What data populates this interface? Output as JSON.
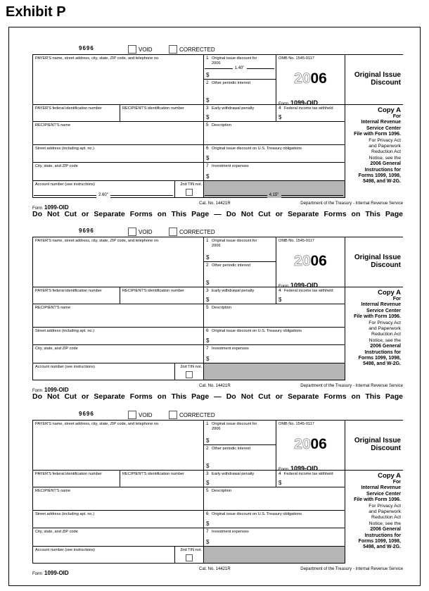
{
  "title": "Exhibit P",
  "separators": [
    "Do Not Cut or Separate Forms on This Page — Do Not Cut or Separate Forms on This Page",
    "Do Not Cut or Separate Forms on This Page — Do Not Cut or Separate Forms on This Page"
  ],
  "forms": [
    {
      "form_code": "9696",
      "void": "VOID",
      "corrected": "CORRECTED",
      "payer_name": {
        "label": "PAYER'S name, street address, city, state, ZIP code, and telephone no."
      },
      "box1": {
        "num": "1",
        "label": "Original issue discount for 2006",
        "currency": "$"
      },
      "box2": {
        "num": "2",
        "label": "Other periodic interest",
        "currency": "$"
      },
      "omb": "OMB No. 1545-0117",
      "year_prefix": "20",
      "year_suffix": "06",
      "form_word": "Form",
      "form_id": "1099-OID",
      "heading": "Original Issue Discount",
      "payer_id": {
        "label": "PAYER'S federal identification number"
      },
      "recipient_id": {
        "label": "RECIPIENT'S identification number"
      },
      "box3": {
        "num": "3",
        "label": "Early withdrawal penalty",
        "currency": "$"
      },
      "box4": {
        "num": "4",
        "label": "Federal income tax withheld",
        "currency": "$"
      },
      "recipient_name": {
        "label": "RECIPIENT'S name"
      },
      "box5": {
        "num": "5",
        "label": "Description"
      },
      "street": {
        "label": "Street address (including apt. no.)"
      },
      "box6": {
        "num": "6",
        "label": "Original issue discount on U.S. Treasury obligations",
        "currency": "$"
      },
      "city": {
        "label": "City, state, and ZIP code"
      },
      "box7": {
        "num": "7",
        "label": "Investment expenses",
        "currency": "$"
      },
      "account": {
        "label": "Account number (see instructions)"
      },
      "tin": {
        "label": "2nd TIN not."
      },
      "copy": "Copy A",
      "copy_lines": [
        "For",
        "Internal Revenue",
        "Service Center",
        "File with Form 1096.",
        "For Privacy Act",
        "and Paperwork",
        "Reduction Act",
        "Notice, see the",
        "2006 General",
        "Instructions for",
        "Forms 1099, 1098,",
        "5498, and W-2G."
      ],
      "footer": {
        "form_word": "Form",
        "form_id": "1099-OID",
        "cat": "Cat. No. 14421R",
        "dept": "Department of the Treasury - Internal Revenue Service"
      },
      "dimensions": [
        "1.40\"",
        "2.60\"",
        "4.15\""
      ]
    },
    {
      "form_code": "9696",
      "void": "VOID",
      "corrected": "CORRECTED",
      "payer_name": {
        "label": "PAYER'S name, street address, city, state, ZIP code, and telephone no."
      },
      "box1": {
        "num": "1",
        "label": "Original issue discount for 2006",
        "currency": "$"
      },
      "box2": {
        "num": "2",
        "label": "Other periodic interest",
        "currency": "$"
      },
      "omb": "OMB No. 1545-0117",
      "year_prefix": "20",
      "year_suffix": "06",
      "form_word": "Form",
      "form_id": "1099-OID",
      "heading": "Original Issue Discount",
      "payer_id": {
        "label": "PAYER'S federal identification number"
      },
      "recipient_id": {
        "label": "RECIPIENT'S identification number"
      },
      "box3": {
        "num": "3",
        "label": "Early withdrawal penalty",
        "currency": "$"
      },
      "box4": {
        "num": "4",
        "label": "Federal income tax withheld",
        "currency": "$"
      },
      "recipient_name": {
        "label": "RECIPIENT'S name"
      },
      "box5": {
        "num": "5",
        "label": "Description"
      },
      "street": {
        "label": "Street address (including apt. no.)"
      },
      "box6": {
        "num": "6",
        "label": "Original issue discount on U.S. Treasury obligations",
        "currency": "$"
      },
      "city": {
        "label": "City, state, and ZIP code"
      },
      "box7": {
        "num": "7",
        "label": "Investment expenses",
        "currency": "$"
      },
      "account": {
        "label": "Account number (see instructions)"
      },
      "tin": {
        "label": "2nd TIN not."
      },
      "copy": "Copy A",
      "copy_lines": [
        "For",
        "Internal Revenue",
        "Service Center",
        "File with Form 1096.",
        "For Privacy Act",
        "and Paperwork",
        "Reduction Act",
        "Notice, see the",
        "2006 General",
        "Instructions for",
        "Forms 1099, 1098,",
        "5498, and W-2G."
      ],
      "footer": {
        "form_word": "Form",
        "form_id": "1099-OID",
        "cat": "Cat. No. 14421R",
        "dept": "Department of the Treasury - Internal Revenue Service"
      }
    },
    {
      "form_code": "9696",
      "void": "VOID",
      "corrected": "CORRECTED",
      "payer_name": {
        "label": "PAYER'S name, street address, city, state, ZIP code, and telephone no."
      },
      "box1": {
        "num": "1",
        "label": "Original issue discount for 2006",
        "currency": "$"
      },
      "box2": {
        "num": "2",
        "label": "Other periodic interest",
        "currency": "$"
      },
      "omb": "OMB No. 1545-0117",
      "year_prefix": "20",
      "year_suffix": "06",
      "form_word": "Form",
      "form_id": "1099-OID",
      "heading": "Original Issue Discount",
      "payer_id": {
        "label": "PAYER'S federal identification number"
      },
      "recipient_id": {
        "label": "RECIPIENT'S identification number"
      },
      "box3": {
        "num": "3",
        "label": "Early withdrawal penalty",
        "currency": "$"
      },
      "box4": {
        "num": "4",
        "label": "Federal income tax withheld",
        "currency": "$"
      },
      "recipient_name": {
        "label": "RECIPIENT'S name"
      },
      "box5": {
        "num": "5",
        "label": "Description"
      },
      "street": {
        "label": "Street address (including apt. no.)"
      },
      "box6": {
        "num": "6",
        "label": "Original issue discount on U.S. Treasury obligations",
        "currency": "$"
      },
      "city": {
        "label": "City, state, and ZIP code"
      },
      "box7": {
        "num": "7",
        "label": "Investment expenses",
        "currency": "$"
      },
      "account": {
        "label": "Account number (see instructions)"
      },
      "tin": {
        "label": "2nd TIN not."
      },
      "copy": "Copy A",
      "copy_lines": [
        "For",
        "Internal Revenue",
        "Service Center",
        "File with Form 1096.",
        "For Privacy Act",
        "and Paperwork",
        "Reduction Act",
        "Notice, see the",
        "2006 General",
        "Instructions for",
        "Forms 1099, 1098,",
        "5498, and W-2G."
      ],
      "footer": {
        "form_word": "Form",
        "form_id": "1099-OID",
        "cat": "Cat. No. 14421R",
        "dept": "Department of the Treasury - Internal Revenue Service"
      }
    }
  ]
}
